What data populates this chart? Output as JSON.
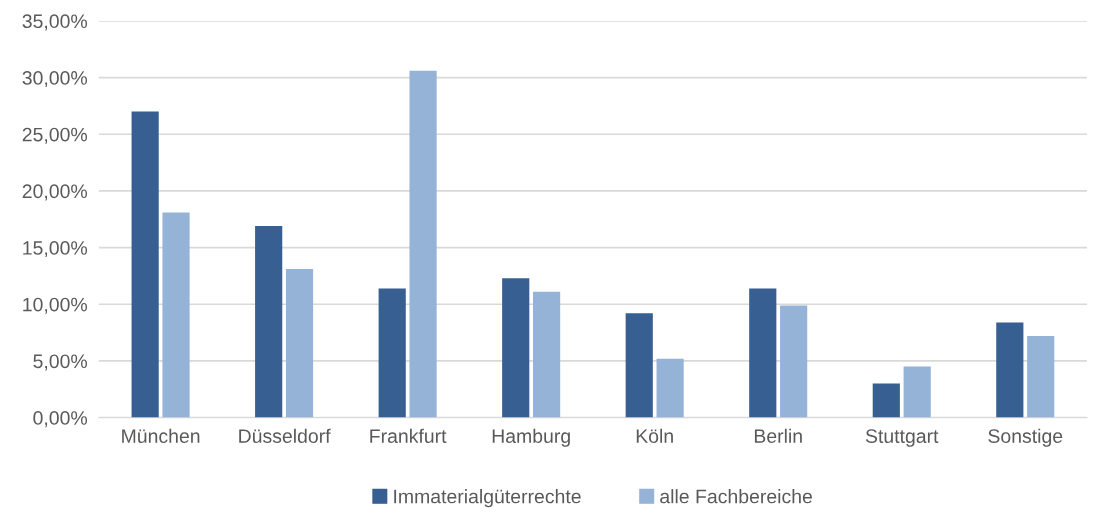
{
  "chart_data": {
    "type": "bar",
    "categories": [
      "München",
      "Düsseldorf",
      "Frankfurt",
      "Hamburg",
      "Köln",
      "Berlin",
      "Stuttgart",
      "Sonstige"
    ],
    "series": [
      {
        "name": "Immaterialgüterrechte",
        "color": "#375f91",
        "values": [
          27.0,
          16.9,
          11.4,
          12.3,
          9.2,
          11.4,
          3.0,
          8.4
        ]
      },
      {
        "name": "alle Fachbereiche",
        "color": "#95b3d7",
        "values": [
          18.1,
          13.1,
          30.6,
          11.1,
          5.2,
          9.9,
          4.5,
          7.2
        ]
      }
    ],
    "ylim": [
      0,
      35
    ],
    "yticks": [
      {
        "value": 0,
        "label": "0,00%"
      },
      {
        "value": 5,
        "label": "5,00%"
      },
      {
        "value": 10,
        "label": "10,00%"
      },
      {
        "value": 15,
        "label": "15,00%"
      },
      {
        "value": 20,
        "label": "20,00%"
      },
      {
        "value": 25,
        "label": "25,00%"
      },
      {
        "value": 30,
        "label": "30,00%"
      },
      {
        "value": 35,
        "label": "35,00%"
      }
    ],
    "grid": "y",
    "legend": "bottom"
  }
}
